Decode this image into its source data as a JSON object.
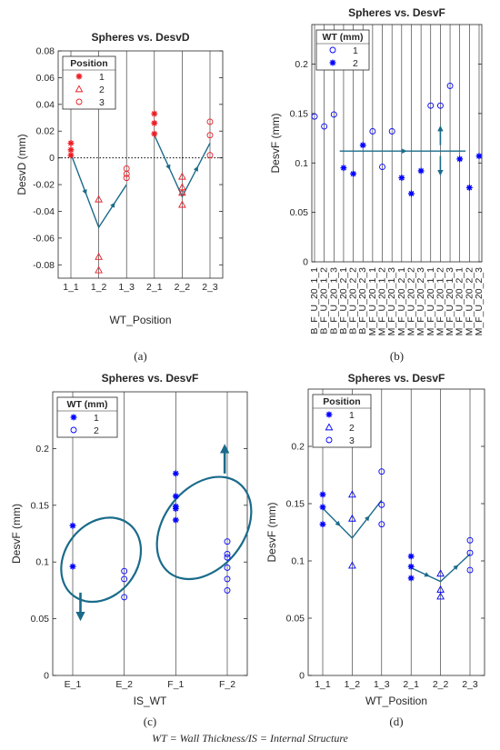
{
  "colors": {
    "red": "#ec1c24",
    "blue": "#0000ff",
    "teal": "#1a6b8a",
    "grid": "#262626"
  },
  "footnote": "WT = Wall Thickness/IS = Internal Structure",
  "chart_data": [
    {
      "panel": "(a)",
      "type": "scatter",
      "title": "Spheres vs. DesvD",
      "xlabel": "WT_Position",
      "ylabel": "DesvD (mm)",
      "categories": [
        "1_1",
        "1_2",
        "1_3",
        "2_1",
        "2_2",
        "2_3"
      ],
      "ylim": [
        -0.09,
        0.08
      ],
      "yticks": [
        -0.08,
        -0.06,
        -0.04,
        -0.02,
        0,
        0.02,
        0.04,
        0.06,
        0.08
      ],
      "ytick_labels": [
        "-0.08",
        "-0.06",
        "-0.04",
        "-0.02",
        "0",
        "0.02",
        "0.04",
        "0.06",
        "0.08"
      ],
      "legend": {
        "title": "Position",
        "location": "top-left"
      },
      "series": [
        {
          "name": "1",
          "marker": "star",
          "color": "red",
          "points": [
            [
              0,
              0.011
            ],
            [
              0,
              0.006
            ],
            [
              0,
              0.002
            ],
            [
              3,
              0.033
            ],
            [
              3,
              0.026
            ],
            [
              3,
              0.018
            ]
          ]
        },
        {
          "name": "2",
          "marker": "triangle",
          "color": "red",
          "points": [
            [
              1,
              -0.031
            ],
            [
              1,
              -0.074
            ],
            [
              1,
              -0.084
            ],
            [
              4,
              -0.014
            ],
            [
              4,
              -0.022
            ],
            [
              4,
              -0.026
            ],
            [
              4,
              -0.035
            ]
          ]
        },
        {
          "name": "3",
          "marker": "circle",
          "color": "red",
          "points": [
            [
              2,
              -0.008
            ],
            [
              2,
              -0.012
            ],
            [
              2,
              -0.015
            ],
            [
              5,
              0.027
            ],
            [
              5,
              0.017
            ],
            [
              5,
              0.002
            ]
          ]
        }
      ],
      "trend_lines": [
        {
          "points": [
            [
              0,
              0.003
            ],
            [
              1,
              -0.052
            ],
            [
              2,
              -0.02
            ]
          ]
        },
        {
          "points": [
            [
              3,
              0.017
            ],
            [
              4,
              -0.029
            ],
            [
              5,
              0.011
            ]
          ]
        }
      ],
      "reference_line": {
        "y": 0,
        "style": "dotted"
      }
    },
    {
      "panel": "(b)",
      "type": "scatter",
      "title": "Spheres vs. DesvF",
      "xlabel": "",
      "ylabel": "DesvF (mm)",
      "categories": [
        "B_F_U_20_1_1",
        "B_F_U_20_1_2",
        "B_F_U_20_1_3",
        "B_F_U_20_2_1",
        "B_F_U_20_2_2",
        "B_F_U_20_2_3",
        "M_F_U_20_1_1",
        "M_F_U_20_1_2",
        "M_F_U_20_1_3",
        "M_F_U_20_2_1",
        "M_F_U_20_2_2",
        "M_F_U_20_2_3",
        "M_F_U_20_1_1",
        "M_F_U_20_1_2",
        "M_F_U_20_1_3",
        "M_F_U_20_2_1",
        "M_F_U_20_2_2",
        "M_F_U_20_2_3"
      ],
      "ylim": [
        0,
        0.24
      ],
      "yticks": [
        0,
        0.05,
        0.1,
        0.15,
        0.2
      ],
      "ytick_labels": [
        "0",
        "0.05",
        "0.1",
        "0.15",
        "0.2"
      ],
      "legend": {
        "title": "WT (mm)",
        "location": "top-left"
      },
      "series": [
        {
          "name": "1",
          "marker": "circle",
          "color": "blue",
          "points": [
            [
              0,
              0.147
            ],
            [
              1,
              0.137
            ],
            [
              2,
              0.149
            ],
            [
              6,
              0.132
            ],
            [
              7,
              0.096
            ],
            [
              8,
              0.132
            ],
            [
              12,
              0.158
            ],
            [
              13,
              0.158
            ],
            [
              14,
              0.178
            ]
          ]
        },
        {
          "name": "2",
          "marker": "star",
          "color": "blue",
          "points": [
            [
              3,
              0.095
            ],
            [
              4,
              0.089
            ],
            [
              5,
              0.118
            ],
            [
              9,
              0.085
            ],
            [
              10,
              0.069
            ],
            [
              11,
              0.092
            ],
            [
              15,
              0.104
            ],
            [
              16,
              0.075
            ],
            [
              17,
              0.107
            ]
          ]
        }
      ],
      "trend_lines": [
        {
          "points": [
            [
              2.6,
              0.112
            ],
            [
              15.6,
              0.112
            ]
          ]
        }
      ],
      "arrows": [
        {
          "x": 13,
          "from": 0.118,
          "to": 0.135
        },
        {
          "x": 13,
          "from": 0.107,
          "to": 0.09
        }
      ]
    },
    {
      "panel": "(c)",
      "type": "scatter",
      "title": "Spheres vs. DesvF",
      "xlabel": "IS_WT",
      "ylabel": "DesvF (mm)",
      "categories": [
        "E_1",
        "E_2",
        "F_1",
        "F_2"
      ],
      "ylim": [
        0,
        0.25
      ],
      "yticks": [
        0,
        0.05,
        0.1,
        0.15,
        0.2
      ],
      "ytick_labels": [
        "0",
        "0.05",
        "0.1",
        "0.15",
        "0.2"
      ],
      "legend": {
        "title": "WT (mm)",
        "location": "top-left"
      },
      "series": [
        {
          "name": "1",
          "marker": "star",
          "color": "blue",
          "points": [
            [
              0,
              0.132
            ],
            [
              0,
              0.096
            ],
            [
              2,
              0.178
            ],
            [
              2,
              0.158
            ],
            [
              2,
              0.149
            ],
            [
              2,
              0.147
            ],
            [
              2,
              0.137
            ]
          ]
        },
        {
          "name": "2",
          "marker": "circle",
          "color": "blue",
          "points": [
            [
              1,
              0.092
            ],
            [
              1,
              0.085
            ],
            [
              1,
              0.069
            ],
            [
              3,
              0.118
            ],
            [
              3,
              0.107
            ],
            [
              3,
              0.104
            ],
            [
              3,
              0.095
            ],
            [
              3,
              0.085
            ],
            [
              3,
              0.075
            ]
          ]
        }
      ],
      "ellipses": [
        {
          "cx": 0.55,
          "cy": 0.102,
          "rx": 0.7,
          "ry": 0.04,
          "rotate": 38
        },
        {
          "cx": 2.55,
          "cy": 0.13,
          "rx": 0.78,
          "ry": 0.05,
          "rotate": 38
        }
      ],
      "arrows": [
        {
          "x": 0.15,
          "from": 0.073,
          "to": 0.052
        },
        {
          "x": 2.95,
          "from": 0.178,
          "to": 0.2
        }
      ]
    },
    {
      "panel": "(d)",
      "type": "scatter",
      "title": "Spheres vs. DesvF",
      "xlabel": "WT_Position",
      "ylabel": "DesvF (mm)",
      "categories": [
        "1_1",
        "1_2",
        "1_3",
        "2_1",
        "2_2",
        "2_3"
      ],
      "ylim": [
        0,
        0.25
      ],
      "yticks": [
        0,
        0.05,
        0.1,
        0.15,
        0.2
      ],
      "ytick_labels": [
        "0",
        "0.05",
        "0.1",
        "0.15",
        "0.2"
      ],
      "legend": {
        "title": "Position",
        "location": "top-left"
      },
      "series": [
        {
          "name": "1",
          "marker": "star",
          "color": "blue",
          "points": [
            [
              0,
              0.158
            ],
            [
              0,
              0.147
            ],
            [
              0,
              0.132
            ],
            [
              3,
              0.104
            ],
            [
              3,
              0.095
            ],
            [
              3,
              0.085
            ]
          ]
        },
        {
          "name": "2",
          "marker": "triangle",
          "color": "blue",
          "points": [
            [
              1,
              0.158
            ],
            [
              1,
              0.137
            ],
            [
              1,
              0.096
            ],
            [
              4,
              0.089
            ],
            [
              4,
              0.075
            ],
            [
              4,
              0.069
            ]
          ]
        },
        {
          "name": "3",
          "marker": "circle",
          "color": "blue",
          "points": [
            [
              2,
              0.178
            ],
            [
              2,
              0.149
            ],
            [
              2,
              0.132
            ],
            [
              5,
              0.118
            ],
            [
              5,
              0.107
            ],
            [
              5,
              0.092
            ]
          ]
        }
      ],
      "trend_lines": [
        {
          "points": [
            [
              0,
              0.146
            ],
            [
              1,
              0.12
            ],
            [
              2,
              0.153
            ]
          ]
        },
        {
          "points": [
            [
              3,
              0.094
            ],
            [
              4,
              0.082
            ],
            [
              5,
              0.106
            ]
          ]
        }
      ]
    }
  ]
}
